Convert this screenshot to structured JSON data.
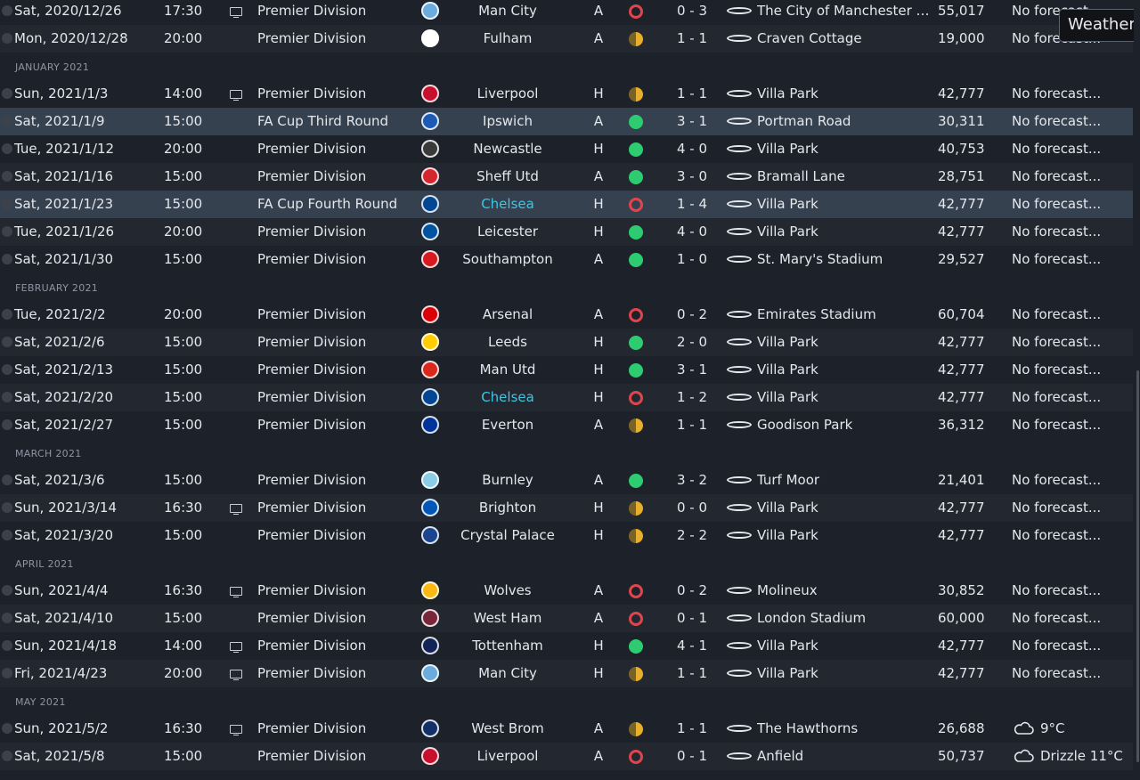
{
  "tooltip": "Weather",
  "groups": [
    {
      "month": "",
      "rows": [
        {
          "date": "Sat, 2020/12/26",
          "time": "17:30",
          "tv": true,
          "comp": "Premier Division",
          "opp": "Man City",
          "crest": "#6cabdd",
          "venue": "A",
          "result": "L",
          "score": "0 - 3",
          "stadium": "The City of Manchester Stadium",
          "att": "55,017",
          "weather": "No forecast..."
        },
        {
          "date": "Mon, 2020/12/28",
          "time": "20:00",
          "tv": false,
          "comp": "Premier Division",
          "opp": "Fulham",
          "crest": "#ffffff",
          "venue": "A",
          "result": "D",
          "score": "1 - 1",
          "stadium": "Craven Cottage",
          "att": "19,000",
          "weather": "No forecast..."
        }
      ]
    },
    {
      "month": "JANUARY 2021",
      "rows": [
        {
          "date": "Sun, 2021/1/3",
          "time": "14:00",
          "tv": true,
          "comp": "Premier Division",
          "opp": "Liverpool",
          "crest": "#c8102e",
          "venue": "H",
          "result": "D",
          "score": "1 - 1",
          "stadium": "Villa Park",
          "att": "42,777",
          "weather": "No forecast..."
        },
        {
          "date": "Sat, 2021/1/9",
          "time": "15:00",
          "tv": false,
          "comp": "FA Cup Third Round",
          "opp": "Ipswich",
          "crest": "#1c5bb5",
          "venue": "A",
          "result": "W",
          "score": "3 - 1",
          "stadium": "Portman Road",
          "att": "30,311",
          "weather": "No forecast...",
          "hl": true
        },
        {
          "date": "Tue, 2021/1/12",
          "time": "20:00",
          "tv": false,
          "comp": "Premier Division",
          "opp": "Newcastle",
          "crest": "#3a3a3a",
          "venue": "H",
          "result": "W",
          "score": "4 - 0",
          "stadium": "Villa Park",
          "att": "40,753",
          "weather": "No forecast..."
        },
        {
          "date": "Sat, 2021/1/16",
          "time": "15:00",
          "tv": false,
          "comp": "Premier Division",
          "opp": "Sheff Utd",
          "crest": "#d3262e",
          "venue": "A",
          "result": "W",
          "score": "3 - 0",
          "stadium": "Bramall Lane",
          "att": "28,751",
          "weather": "No forecast..."
        },
        {
          "date": "Sat, 2021/1/23",
          "time": "15:00",
          "tv": false,
          "comp": "FA Cup Fourth Round",
          "opp": "Chelsea",
          "crest": "#034694",
          "venue": "H",
          "result": "L",
          "score": "1 - 4",
          "stadium": "Villa Park",
          "att": "42,777",
          "weather": "No forecast...",
          "hl": true,
          "link": true
        },
        {
          "date": "Tue, 2021/1/26",
          "time": "20:00",
          "tv": false,
          "comp": "Premier Division",
          "opp": "Leicester",
          "crest": "#0053a0",
          "venue": "H",
          "result": "W",
          "score": "4 - 0",
          "stadium": "Villa Park",
          "att": "42,777",
          "weather": "No forecast..."
        },
        {
          "date": "Sat, 2021/1/30",
          "time": "15:00",
          "tv": false,
          "comp": "Premier Division",
          "opp": "Southampton",
          "crest": "#d71920",
          "venue": "A",
          "result": "W",
          "score": "1 - 0",
          "stadium": "St. Mary's Stadium",
          "att": "29,527",
          "weather": "No forecast..."
        }
      ]
    },
    {
      "month": "FEBRUARY 2021",
      "rows": [
        {
          "date": "Tue, 2021/2/2",
          "time": "20:00",
          "tv": false,
          "comp": "Premier Division",
          "opp": "Arsenal",
          "crest": "#db0007",
          "venue": "A",
          "result": "L",
          "score": "0 - 2",
          "stadium": "Emirates Stadium",
          "att": "60,704",
          "weather": "No forecast..."
        },
        {
          "date": "Sat, 2021/2/6",
          "time": "15:00",
          "tv": false,
          "comp": "Premier Division",
          "opp": "Leeds",
          "crest": "#ffcd00",
          "venue": "H",
          "result": "W",
          "score": "2 - 0",
          "stadium": "Villa Park",
          "att": "42,777",
          "weather": "No forecast..."
        },
        {
          "date": "Sat, 2021/2/13",
          "time": "15:00",
          "tv": false,
          "comp": "Premier Division",
          "opp": "Man Utd",
          "crest": "#da291c",
          "venue": "H",
          "result": "W",
          "score": "3 - 1",
          "stadium": "Villa Park",
          "att": "42,777",
          "weather": "No forecast..."
        },
        {
          "date": "Sat, 2021/2/20",
          "time": "15:00",
          "tv": false,
          "comp": "Premier Division",
          "opp": "Chelsea",
          "crest": "#034694",
          "venue": "H",
          "result": "L",
          "score": "1 - 2",
          "stadium": "Villa Park",
          "att": "42,777",
          "weather": "No forecast...",
          "link": true
        },
        {
          "date": "Sat, 2021/2/27",
          "time": "15:00",
          "tv": false,
          "comp": "Premier Division",
          "opp": "Everton",
          "crest": "#003399",
          "venue": "A",
          "result": "D",
          "score": "1 - 1",
          "stadium": "Goodison Park",
          "att": "36,312",
          "weather": "No forecast..."
        }
      ]
    },
    {
      "month": "MARCH 2021",
      "rows": [
        {
          "date": "Sat, 2021/3/6",
          "time": "15:00",
          "tv": false,
          "comp": "Premier Division",
          "opp": "Burnley",
          "crest": "#8ccce5",
          "venue": "A",
          "result": "W",
          "score": "3 - 2",
          "stadium": "Turf Moor",
          "att": "21,401",
          "weather": "No forecast..."
        },
        {
          "date": "Sun, 2021/3/14",
          "time": "16:30",
          "tv": true,
          "comp": "Premier Division",
          "opp": "Brighton",
          "crest": "#0057b8",
          "venue": "H",
          "result": "D",
          "score": "0 - 0",
          "stadium": "Villa Park",
          "att": "42,777",
          "weather": "No forecast..."
        },
        {
          "date": "Sat, 2021/3/20",
          "time": "15:00",
          "tv": false,
          "comp": "Premier Division",
          "opp": "Crystal Palace",
          "crest": "#1b458f",
          "venue": "H",
          "result": "D",
          "score": "2 - 2",
          "stadium": "Villa Park",
          "att": "42,777",
          "weather": "No forecast..."
        }
      ]
    },
    {
      "month": "APRIL 2021",
      "rows": [
        {
          "date": "Sun, 2021/4/4",
          "time": "16:30",
          "tv": true,
          "comp": "Premier Division",
          "opp": "Wolves",
          "crest": "#fdb913",
          "venue": "A",
          "result": "L",
          "score": "0 - 2",
          "stadium": "Molineux",
          "att": "30,852",
          "weather": "No forecast..."
        },
        {
          "date": "Sat, 2021/4/10",
          "time": "15:00",
          "tv": false,
          "comp": "Premier Division",
          "opp": "West Ham",
          "crest": "#7a263a",
          "venue": "A",
          "result": "L",
          "score": "0 - 1",
          "stadium": "London Stadium",
          "att": "60,000",
          "weather": "No forecast..."
        },
        {
          "date": "Sun, 2021/4/18",
          "time": "14:00",
          "tv": true,
          "comp": "Premier Division",
          "opp": "Tottenham",
          "crest": "#132257",
          "venue": "H",
          "result": "W",
          "score": "4 - 1",
          "stadium": "Villa Park",
          "att": "42,777",
          "weather": "No forecast..."
        },
        {
          "date": "Fri, 2021/4/23",
          "time": "20:00",
          "tv": true,
          "comp": "Premier Division",
          "opp": "Man City",
          "crest": "#6cabdd",
          "venue": "H",
          "result": "D",
          "score": "1 - 1",
          "stadium": "Villa Park",
          "att": "42,777",
          "weather": "No forecast..."
        }
      ]
    },
    {
      "month": "MAY 2021",
      "rows": [
        {
          "date": "Sun, 2021/5/2",
          "time": "16:30",
          "tv": true,
          "comp": "Premier Division",
          "opp": "West Brom",
          "crest": "#122f67",
          "venue": "A",
          "result": "D",
          "score": "1 - 1",
          "stadium": "The Hawthorns",
          "att": "26,688",
          "weather": "9°C",
          "wxicon": "partly-cloudy-icon"
        },
        {
          "date": "Sat, 2021/5/8",
          "time": "15:00",
          "tv": false,
          "comp": "Premier Division",
          "opp": "Liverpool",
          "crest": "#c8102e",
          "venue": "A",
          "result": "L",
          "score": "0 - 1",
          "stadium": "Anfield",
          "att": "50,737",
          "weather": "Drizzle 11°C",
          "wxicon": "drizzle-icon"
        }
      ]
    }
  ]
}
